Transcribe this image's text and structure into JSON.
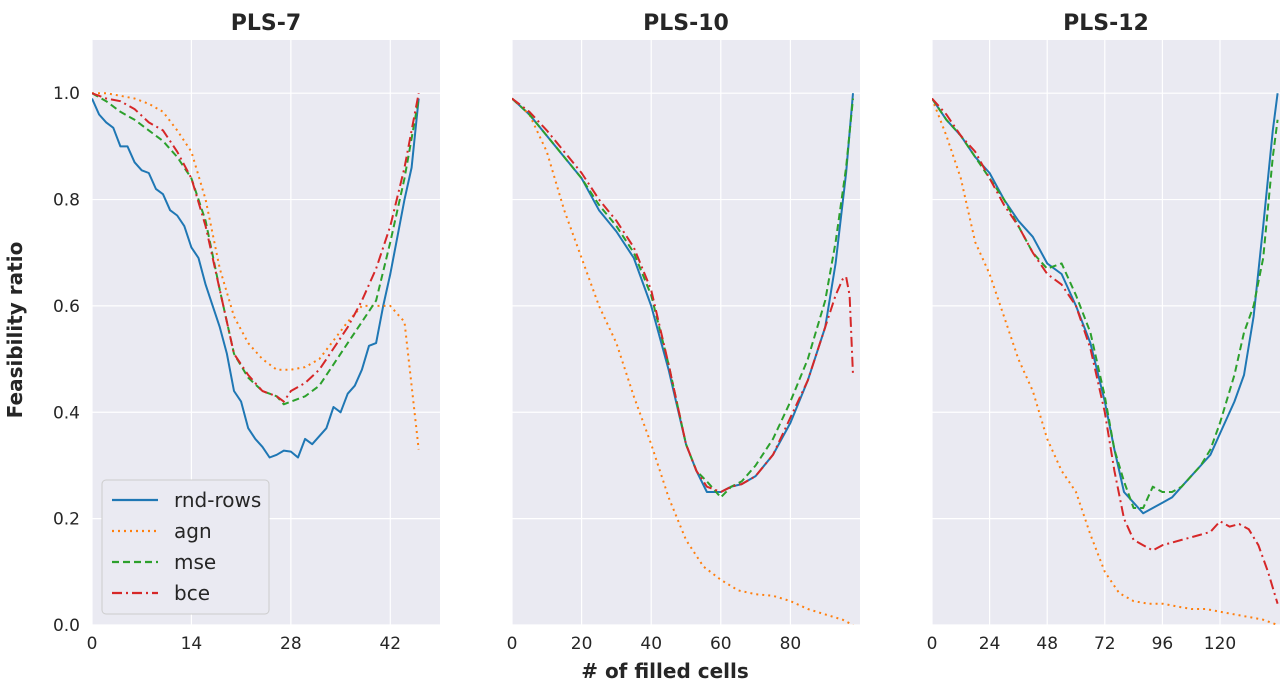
{
  "figure": {
    "xlabel": "# of filled cells",
    "ylabel": "Feasibility ratio"
  },
  "colors": {
    "rnd-rows": "#1f77b4",
    "agn": "#ff7f0e",
    "mse": "#2ca02c",
    "bce": "#d62728",
    "panel_bg": "#eaeaf2"
  },
  "legend": {
    "placement": "lower-left of first panel",
    "entries": [
      "rnd-rows",
      "agn",
      "mse",
      "bce"
    ]
  },
  "chart_data": [
    {
      "type": "line",
      "title": "PLS-7",
      "xlim": [
        0,
        49
      ],
      "ylim": [
        0,
        1.1
      ],
      "xticks": [
        0,
        14,
        28,
        42
      ],
      "yticks": [
        0.0,
        0.2,
        0.4,
        0.6,
        0.8,
        1.0
      ],
      "ytick_labels": [
        "0.0",
        "0.2",
        "0.4",
        "0.6",
        "0.8",
        "1.0"
      ],
      "grid": true,
      "series": [
        {
          "name": "rnd-rows",
          "style": "solid",
          "x": [
            0,
            1,
            2,
            3,
            4,
            5,
            6,
            7,
            8,
            9,
            10,
            11,
            12,
            13,
            14,
            15,
            16,
            17,
            18,
            19,
            20,
            21,
            22,
            23,
            24,
            25,
            26,
            27,
            28,
            29,
            30,
            31,
            32,
            33,
            34,
            35,
            36,
            37,
            38,
            39,
            40,
            41,
            42,
            43,
            44,
            45,
            46
          ],
          "y": [
            0.99,
            0.96,
            0.945,
            0.935,
            0.9,
            0.9,
            0.87,
            0.855,
            0.85,
            0.82,
            0.81,
            0.78,
            0.77,
            0.75,
            0.71,
            0.69,
            0.64,
            0.6,
            0.56,
            0.51,
            0.44,
            0.42,
            0.37,
            0.35,
            0.335,
            0.315,
            0.32,
            0.328,
            0.326,
            0.315,
            0.35,
            0.34,
            0.355,
            0.37,
            0.41,
            0.4,
            0.435,
            0.45,
            0.48,
            0.525,
            0.53,
            0.6,
            0.66,
            0.73,
            0.8,
            0.86,
            0.99
          ]
        },
        {
          "name": "agn",
          "style": "dotted",
          "x": [
            0,
            2,
            4,
            6,
            8,
            10,
            12,
            14,
            16,
            18,
            20,
            22,
            24,
            26,
            28,
            30,
            32,
            34,
            36,
            38,
            40,
            42,
            44,
            45,
            46
          ],
          "y": [
            1.0,
            1.0,
            0.995,
            0.99,
            0.98,
            0.965,
            0.93,
            0.89,
            0.8,
            0.67,
            0.58,
            0.53,
            0.5,
            0.48,
            0.48,
            0.485,
            0.5,
            0.535,
            0.57,
            0.6,
            0.6,
            0.6,
            0.57,
            0.45,
            0.33
          ]
        },
        {
          "name": "mse",
          "style": "dashed",
          "x": [
            0,
            2,
            4,
            6,
            8,
            10,
            12,
            14,
            16,
            18,
            20,
            22,
            24,
            26,
            27,
            28,
            30,
            32,
            34,
            36,
            38,
            40,
            42,
            44,
            46
          ],
          "y": [
            1.0,
            0.985,
            0.965,
            0.95,
            0.93,
            0.91,
            0.88,
            0.84,
            0.76,
            0.63,
            0.51,
            0.465,
            0.44,
            0.43,
            0.415,
            0.42,
            0.43,
            0.45,
            0.49,
            0.53,
            0.57,
            0.61,
            0.72,
            0.84,
            0.99
          ]
        },
        {
          "name": "bce",
          "style": "dashdot",
          "x": [
            0,
            2,
            4,
            6,
            8,
            10,
            12,
            14,
            16,
            18,
            20,
            22,
            24,
            26,
            27,
            28,
            30,
            32,
            34,
            36,
            38,
            40,
            42,
            44,
            46
          ],
          "y": [
            1.0,
            0.99,
            0.985,
            0.97,
            0.945,
            0.93,
            0.89,
            0.84,
            0.75,
            0.63,
            0.51,
            0.47,
            0.44,
            0.43,
            0.42,
            0.44,
            0.455,
            0.48,
            0.52,
            0.56,
            0.61,
            0.67,
            0.75,
            0.86,
            1.0
          ]
        }
      ]
    },
    {
      "type": "line",
      "title": "PLS-10",
      "xlim": [
        0,
        100
      ],
      "ylim": [
        0,
        1.1
      ],
      "xticks": [
        0,
        20,
        40,
        60,
        80
      ],
      "yticks": [
        0.0,
        0.2,
        0.4,
        0.6,
        0.8,
        1.0
      ],
      "grid": true,
      "series": [
        {
          "name": "rnd-rows",
          "style": "solid",
          "x": [
            0,
            5,
            10,
            15,
            20,
            25,
            30,
            35,
            40,
            45,
            50,
            53,
            56,
            58,
            60,
            63,
            66,
            70,
            75,
            80,
            85,
            90,
            93,
            96,
            98
          ],
          "y": [
            0.99,
            0.96,
            0.92,
            0.88,
            0.84,
            0.78,
            0.74,
            0.69,
            0.6,
            0.48,
            0.34,
            0.29,
            0.25,
            0.25,
            0.25,
            0.26,
            0.265,
            0.28,
            0.32,
            0.38,
            0.46,
            0.56,
            0.68,
            0.85,
            1.0
          ]
        },
        {
          "name": "agn",
          "style": "dotted",
          "x": [
            0,
            5,
            10,
            15,
            20,
            25,
            30,
            35,
            40,
            45,
            50,
            55,
            60,
            65,
            70,
            75,
            80,
            85,
            90,
            95,
            98
          ],
          "y": [
            0.99,
            0.96,
            0.89,
            0.78,
            0.69,
            0.6,
            0.53,
            0.43,
            0.34,
            0.24,
            0.16,
            0.11,
            0.085,
            0.065,
            0.058,
            0.055,
            0.045,
            0.03,
            0.02,
            0.01,
            0.0
          ]
        },
        {
          "name": "mse",
          "style": "dashed",
          "x": [
            0,
            5,
            10,
            15,
            20,
            25,
            30,
            35,
            40,
            45,
            50,
            53,
            56,
            60,
            63,
            66,
            70,
            75,
            80,
            85,
            90,
            93,
            96,
            98
          ],
          "y": [
            0.99,
            0.96,
            0.92,
            0.88,
            0.84,
            0.79,
            0.75,
            0.7,
            0.62,
            0.49,
            0.34,
            0.29,
            0.27,
            0.24,
            0.26,
            0.27,
            0.3,
            0.35,
            0.42,
            0.5,
            0.61,
            0.72,
            0.86,
            0.99
          ]
        },
        {
          "name": "bce",
          "style": "dashdot",
          "x": [
            0,
            5,
            10,
            15,
            20,
            25,
            30,
            35,
            40,
            45,
            50,
            53,
            56,
            60,
            63,
            66,
            70,
            75,
            80,
            85,
            88,
            91,
            93,
            95,
            96,
            97,
            98
          ],
          "y": [
            0.99,
            0.965,
            0.93,
            0.89,
            0.85,
            0.8,
            0.76,
            0.71,
            0.63,
            0.49,
            0.34,
            0.29,
            0.26,
            0.25,
            0.26,
            0.265,
            0.28,
            0.32,
            0.39,
            0.46,
            0.52,
            0.58,
            0.62,
            0.65,
            0.655,
            0.62,
            0.47
          ]
        }
      ]
    },
    {
      "type": "line",
      "title": "PLS-12",
      "xlim": [
        0,
        145
      ],
      "ylim": [
        0,
        1.1
      ],
      "xticks": [
        0,
        24,
        48,
        72,
        96,
        120
      ],
      "yticks": [
        0.0,
        0.2,
        0.4,
        0.6,
        0.8,
        1.0
      ],
      "grid": true,
      "series": [
        {
          "name": "rnd-rows",
          "style": "solid",
          "x": [
            0,
            6,
            12,
            18,
            24,
            30,
            36,
            42,
            48,
            54,
            60,
            66,
            72,
            76,
            80,
            84,
            88,
            92,
            96,
            100,
            104,
            108,
            112,
            116,
            120,
            126,
            130,
            134,
            138,
            142,
            144
          ],
          "y": [
            0.99,
            0.95,
            0.92,
            0.88,
            0.85,
            0.8,
            0.76,
            0.73,
            0.68,
            0.66,
            0.6,
            0.53,
            0.42,
            0.33,
            0.25,
            0.23,
            0.21,
            0.22,
            0.23,
            0.24,
            0.26,
            0.28,
            0.3,
            0.32,
            0.36,
            0.42,
            0.47,
            0.58,
            0.75,
            0.93,
            1.0
          ]
        },
        {
          "name": "agn",
          "style": "dotted",
          "x": [
            0,
            6,
            12,
            18,
            24,
            30,
            36,
            42,
            48,
            54,
            60,
            66,
            72,
            78,
            84,
            90,
            96,
            102,
            108,
            114,
            120,
            126,
            132,
            138,
            144
          ],
          "y": [
            0.99,
            0.92,
            0.84,
            0.72,
            0.66,
            0.58,
            0.5,
            0.44,
            0.35,
            0.29,
            0.25,
            0.17,
            0.1,
            0.06,
            0.045,
            0.04,
            0.04,
            0.035,
            0.03,
            0.03,
            0.025,
            0.02,
            0.015,
            0.01,
            0.0
          ]
        },
        {
          "name": "mse",
          "style": "dashed",
          "x": [
            0,
            6,
            12,
            18,
            24,
            30,
            36,
            42,
            48,
            54,
            60,
            66,
            72,
            76,
            80,
            84,
            88,
            92,
            96,
            100,
            104,
            108,
            112,
            116,
            120,
            126,
            130,
            134,
            138,
            142,
            144
          ],
          "y": [
            0.99,
            0.95,
            0.92,
            0.88,
            0.84,
            0.8,
            0.75,
            0.7,
            0.67,
            0.68,
            0.62,
            0.55,
            0.43,
            0.33,
            0.27,
            0.22,
            0.22,
            0.26,
            0.25,
            0.25,
            0.26,
            0.28,
            0.3,
            0.33,
            0.38,
            0.47,
            0.55,
            0.6,
            0.69,
            0.88,
            0.95
          ]
        },
        {
          "name": "bce",
          "style": "dashdot",
          "x": [
            0,
            6,
            12,
            18,
            24,
            30,
            36,
            42,
            48,
            54,
            60,
            66,
            72,
            76,
            80,
            84,
            88,
            92,
            96,
            100,
            104,
            108,
            112,
            116,
            120,
            124,
            128,
            132,
            136,
            140,
            144
          ],
          "y": [
            0.99,
            0.96,
            0.92,
            0.89,
            0.84,
            0.79,
            0.75,
            0.7,
            0.66,
            0.64,
            0.6,
            0.52,
            0.4,
            0.29,
            0.2,
            0.16,
            0.15,
            0.14,
            0.15,
            0.155,
            0.16,
            0.165,
            0.17,
            0.175,
            0.195,
            0.185,
            0.19,
            0.18,
            0.15,
            0.1,
            0.04
          ]
        }
      ]
    }
  ]
}
